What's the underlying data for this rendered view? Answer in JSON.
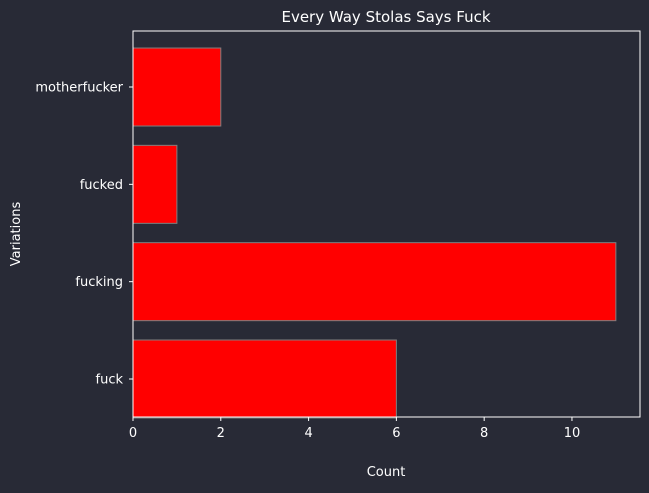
{
  "colors": {
    "background": "#282a36",
    "bar_fill": "#ff0000",
    "bar_edge": "#808080",
    "axis": "#ffffff",
    "text": "#ffffff"
  },
  "chart_data": {
    "type": "bar",
    "orientation": "horizontal",
    "title": "Every Way Stolas Says Fuck",
    "xlabel": "Count",
    "ylabel": "Variations",
    "categories": [
      "fuck",
      "fucking",
      "fucked",
      "motherfucker"
    ],
    "values": [
      6,
      11,
      1,
      2
    ],
    "xlim": [
      0,
      11.55
    ],
    "xticks": [
      0,
      2,
      4,
      6,
      8,
      10
    ],
    "grid": false,
    "legend": "none"
  }
}
